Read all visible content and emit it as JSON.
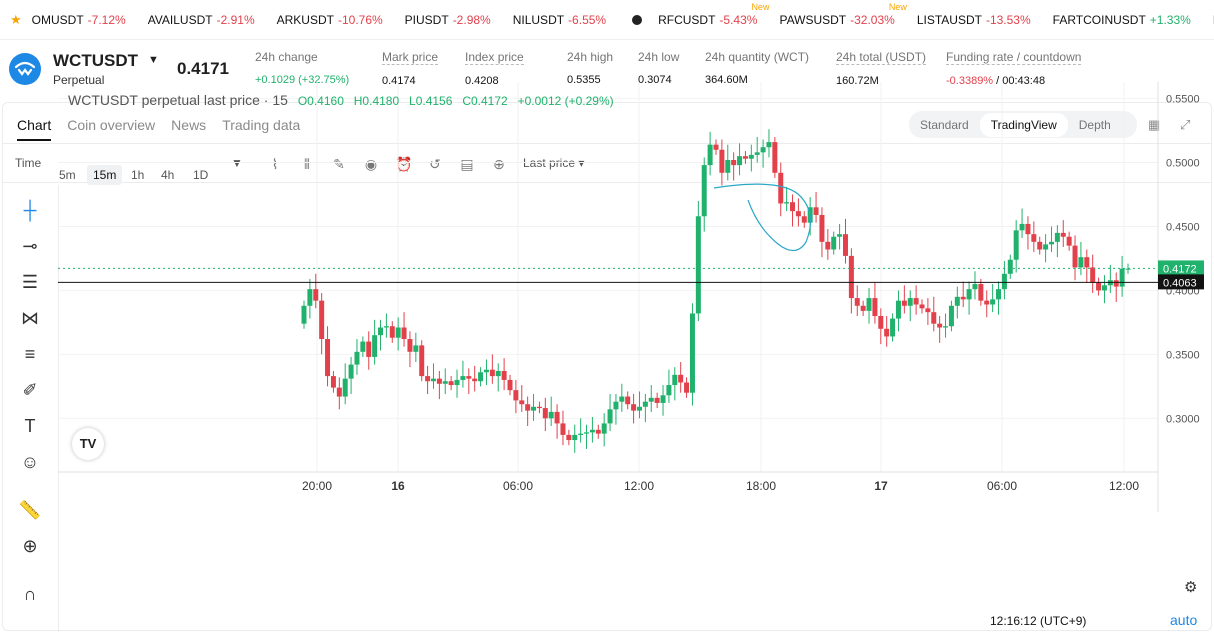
{
  "ticker": [
    {
      "sym": "OMUSDT",
      "chg": "-7.12%",
      "dir": "neg",
      "isnew": false
    },
    {
      "sym": "AVAILUSDT",
      "chg": "-2.91%",
      "dir": "neg",
      "isnew": false
    },
    {
      "sym": "ARKUSDT",
      "chg": "-10.76%",
      "dir": "neg",
      "isnew": false
    },
    {
      "sym": "PIUSDT",
      "chg": "-2.98%",
      "dir": "neg",
      "isnew": false
    },
    {
      "sym": "NILUSDT",
      "chg": "-6.55%",
      "dir": "neg",
      "isnew": false
    },
    {
      "sym": "RFCUSDT",
      "chg": "-5.43%",
      "dir": "neg",
      "isnew": true
    },
    {
      "sym": "PAWSUSDT",
      "chg": "-32.03%",
      "dir": "neg",
      "isnew": true
    },
    {
      "sym": "LISTAUSDT",
      "chg": "-13.53%",
      "dir": "neg",
      "isnew": false
    },
    {
      "sym": "FARTCOINUSDT",
      "chg": "+1.33%",
      "dir": "pos",
      "isnew": false
    },
    {
      "sym": "LAYERUSDT",
      "chg": "",
      "dir": "neg",
      "isnew": false
    }
  ],
  "new_label": "New",
  "header": {
    "symbol": "WCTUSDT",
    "type": "Perpetual",
    "last": "0.4171"
  },
  "stats": [
    {
      "label": "24h change",
      "value": "+0.1029 (+32.75%)",
      "cls": "pos"
    },
    {
      "label": "Mark price",
      "value": "0.4174",
      "cls": ""
    },
    {
      "label": "Index price",
      "value": "0.4208",
      "cls": ""
    },
    {
      "label": "24h high",
      "value": "0.5355",
      "cls": ""
    },
    {
      "label": "24h low",
      "value": "0.3074",
      "cls": ""
    },
    {
      "label": "24h quantity (WCT)",
      "value": "364.60M",
      "cls": ""
    },
    {
      "label": "24h total (USDT)",
      "value": "160.72M",
      "cls": ""
    },
    {
      "label": "Funding rate / countdown",
      "value": "-0.3389%",
      "value2": " / 00:43:48",
      "cls": "neg"
    }
  ],
  "tabs": [
    "Chart",
    "Coin overview",
    "News",
    "Trading data"
  ],
  "modes": [
    "Standard",
    "TradingView",
    "Depth"
  ],
  "timebar": {
    "time": "Time",
    "intervals": [
      "5m",
      "15m",
      "1h",
      "4h",
      "1D"
    ],
    "active": "15m",
    "price_type": "Last price ▾"
  },
  "legend": {
    "title": "WCTUSDT perpetual last price · 15",
    "o": "O0.4160",
    "h": "H0.4180",
    "l": "L0.4156",
    "c": "C0.4172",
    "chg": "+0.0012 (+0.29%)"
  },
  "tv_logo": "TV",
  "clock": "12:16:12 (UTC+9)",
  "auto": "auto",
  "chart_data": {
    "type": "candlestick",
    "y_ticks": [
      "0.5500",
      "0.5000",
      "0.4500",
      "0.4000",
      "0.3500",
      "0.3000"
    ],
    "x_ticks": [
      "20:00",
      "16",
      "06:00",
      "12:00",
      "18:00",
      "17",
      "06:00",
      "12:00"
    ],
    "last_label": "0.4172",
    "line_label": "0.4063",
    "last": 0.4172,
    "line": 0.4063,
    "ylim": [
      0.258,
      0.563
    ],
    "closes": [
      0.388,
      0.401,
      0.392,
      0.362,
      0.333,
      0.324,
      0.317,
      0.331,
      0.342,
      0.352,
      0.36,
      0.348,
      0.365,
      0.371,
      0.372,
      0.363,
      0.371,
      0.362,
      0.352,
      0.357,
      0.333,
      0.329,
      0.331,
      0.327,
      0.329,
      0.326,
      0.33,
      0.333,
      0.331,
      0.329,
      0.336,
      0.338,
      0.333,
      0.337,
      0.33,
      0.322,
      0.314,
      0.311,
      0.306,
      0.309,
      0.308,
      0.3,
      0.305,
      0.296,
      0.287,
      0.283,
      0.287,
      0.288,
      0.289,
      0.291,
      0.288,
      0.296,
      0.307,
      0.313,
      0.317,
      0.311,
      0.306,
      0.309,
      0.313,
      0.316,
      0.312,
      0.318,
      0.326,
      0.334,
      0.328,
      0.32,
      0.382,
      0.458,
      0.498,
      0.514,
      0.51,
      0.492,
      0.502,
      0.498,
      0.505,
      0.503,
      0.506,
      0.508,
      0.512,
      0.516,
      0.492,
      0.468,
      0.469,
      0.462,
      0.458,
      0.453,
      0.465,
      0.459,
      0.438,
      0.432,
      0.442,
      0.444,
      0.427,
      0.394,
      0.388,
      0.384,
      0.394,
      0.38,
      0.37,
      0.364,
      0.378,
      0.392,
      0.388,
      0.394,
      0.389,
      0.386,
      0.383,
      0.374,
      0.371,
      0.372,
      0.388,
      0.395,
      0.393,
      0.401,
      0.405,
      0.392,
      0.389,
      0.393,
      0.401,
      0.413,
      0.424,
      0.447,
      0.452,
      0.444,
      0.438,
      0.432,
      0.436,
      0.438,
      0.445,
      0.442,
      0.435,
      0.418,
      0.426,
      0.418,
      0.406,
      0.4,
      0.404,
      0.408,
      0.403,
      0.417,
      0.417
    ]
  }
}
